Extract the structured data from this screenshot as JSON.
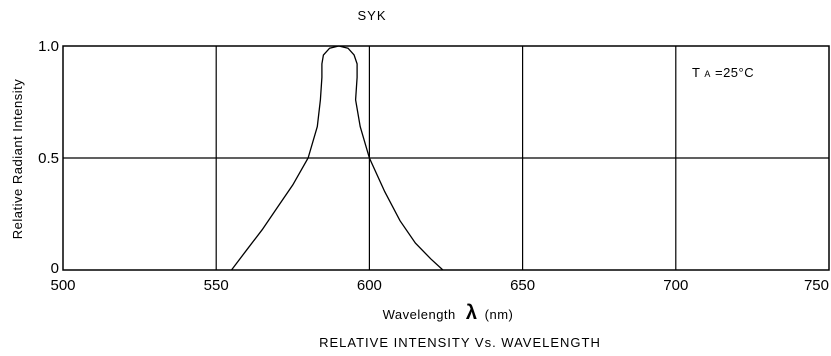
{
  "chart_data": {
    "type": "line",
    "title": "SYK",
    "subtitle": "RELATIVE INTENSITY Vs. WAVELENGTH",
    "xlabel": "Wavelength",
    "xlabel_symbol": "λ",
    "xlabel_unit": "(nm)",
    "ylabel": "Relative Radiant Intensity",
    "annotation": {
      "main": "T",
      "sub": "A",
      "rest": "=25°C"
    },
    "xlim": [
      500,
      750
    ],
    "ylim": [
      0,
      1.0
    ],
    "x_ticks": [
      500,
      550,
      600,
      650,
      700,
      750
    ],
    "x_tick_labels": [
      "500",
      "550",
      "600",
      "650",
      "700",
      "750"
    ],
    "y_ticks": [
      0,
      0.5,
      1.0
    ],
    "y_tick_labels": [
      "0",
      "0.5",
      "1.0"
    ],
    "grid": true,
    "series": [
      {
        "x": [
          555,
          560,
          565,
          570,
          575,
          580,
          583,
          584,
          584.5,
          584.5,
          585,
          587,
          590,
          593,
          595,
          596,
          596,
          595.5,
          597,
          600,
          605,
          610,
          615,
          620,
          624
        ],
        "y": [
          0.0,
          0.09,
          0.18,
          0.28,
          0.38,
          0.5,
          0.64,
          0.76,
          0.86,
          0.92,
          0.96,
          0.99,
          1.0,
          0.99,
          0.96,
          0.92,
          0.86,
          0.76,
          0.64,
          0.5,
          0.35,
          0.22,
          0.12,
          0.05,
          0.0
        ]
      }
    ]
  }
}
